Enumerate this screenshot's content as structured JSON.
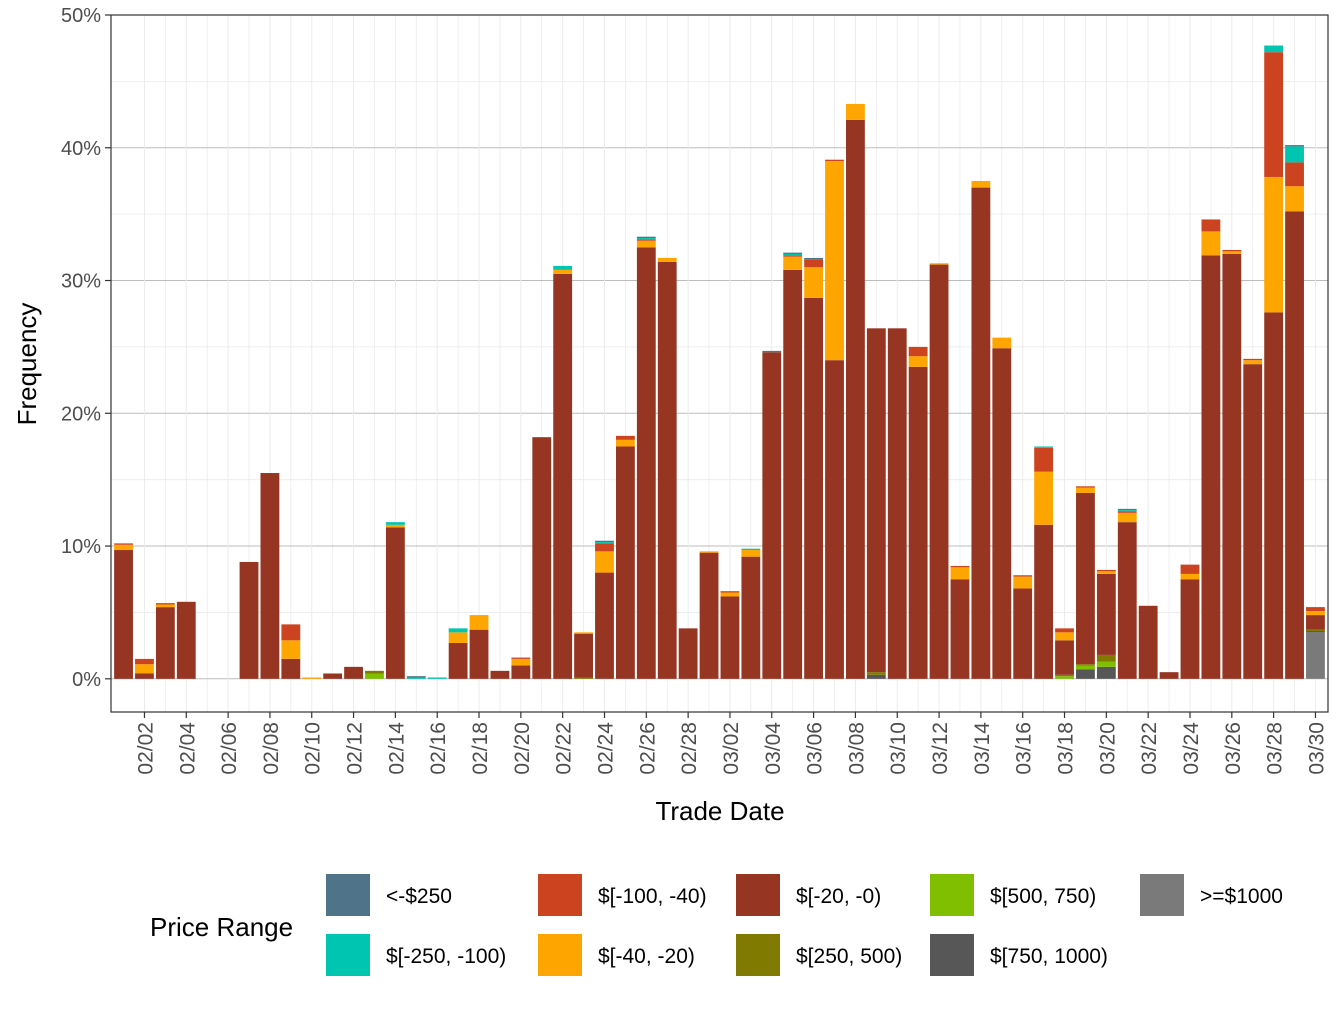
{
  "chart_data": {
    "type": "bar",
    "stacked": true,
    "title": "",
    "xlabel": "Trade Date",
    "ylabel": "Frequency",
    "ylim": [
      -0.025,
      0.5
    ],
    "y_ticks": [
      0,
      0.1,
      0.2,
      0.3,
      0.4,
      0.5
    ],
    "y_tick_labels": [
      "0%",
      "10%",
      "20%",
      "30%",
      "40%",
      "50%"
    ],
    "x_ticks": [
      "2026-02-02",
      "2026-02-04",
      "2026-02-06",
      "2026-02-08",
      "2026-02-10",
      "2026-02-12",
      "2026-02-14",
      "2026-02-16",
      "2026-02-18",
      "2026-02-20",
      "2026-02-22",
      "2026-02-24",
      "2026-02-26",
      "2026-02-28",
      "2026-03-02",
      "2026-03-04",
      "2026-03-06",
      "2026-03-08",
      "2026-03-10",
      "2026-03-12",
      "2026-03-14",
      "2026-03-16",
      "2026-03-18",
      "2026-03-20",
      "2026-03-22",
      "2026-03-24",
      "2026-03-26",
      "2026-03-28",
      "2026-03-30"
    ],
    "x_tick_labels": [
      "02/02",
      "02/04",
      "02/06",
      "02/08",
      "02/10",
      "02/12",
      "02/14",
      "02/16",
      "02/18",
      "02/20",
      "02/22",
      "02/24",
      "02/26",
      "02/28",
      "03/02",
      "03/04",
      "03/06",
      "03/08",
      "03/10",
      "03/12",
      "03/14",
      "03/16",
      "03/18",
      "03/20",
      "03/22",
      "03/24",
      "03/26",
      "03/28",
      "03/30"
    ],
    "grid": true,
    "legend": {
      "title": "Price Range",
      "position": "bottom",
      "entries": [
        "<-$250",
        "$[-250, -100)",
        "$[-100, -40)",
        "$[-40, -20)",
        "$[-20, -0)",
        "$[250, 500)",
        "$[500, 750)",
        "$[750, 1000)",
        ">=$1000"
      ]
    },
    "dates": [
      "2026-02-01",
      "2026-02-02",
      "2026-02-03",
      "2026-02-04",
      "2026-02-05",
      "2026-02-06",
      "2026-02-07",
      "2026-02-08",
      "2026-02-09",
      "2026-02-10",
      "2026-02-11",
      "2026-02-12",
      "2026-02-13",
      "2026-02-14",
      "2026-02-15",
      "2026-02-16",
      "2026-02-17",
      "2026-02-18",
      "2026-02-19",
      "2026-02-20",
      "2026-02-21",
      "2026-02-22",
      "2026-02-23",
      "2026-02-24",
      "2026-02-25",
      "2026-02-26",
      "2026-02-27",
      "2026-02-28",
      "2026-03-01",
      "2026-03-02",
      "2026-03-03",
      "2026-03-04",
      "2026-03-05",
      "2026-03-06",
      "2026-03-07",
      "2026-03-08",
      "2026-03-09",
      "2026-03-10",
      "2026-03-11",
      "2026-03-12",
      "2026-03-13",
      "2026-03-14",
      "2026-03-15",
      "2026-03-16",
      "2026-03-17",
      "2026-03-18",
      "2026-03-19",
      "2026-03-20",
      "2026-03-21",
      "2026-03-22",
      "2026-03-23",
      "2026-03-24",
      "2026-03-25",
      "2026-03-26",
      "2026-03-27",
      "2026-03-28",
      "2026-03-29",
      "2026-03-30"
    ],
    "series": [
      {
        "name": ">=$1000",
        "color": "#7a7a7a",
        "values": [
          0,
          0,
          0,
          0,
          0,
          0,
          0,
          0,
          0,
          0,
          0,
          0,
          0,
          0,
          0,
          0,
          0,
          0,
          0,
          0,
          0,
          0,
          0,
          0,
          0,
          0,
          0,
          0,
          0,
          0,
          0,
          0,
          0,
          0,
          0,
          0,
          0,
          0,
          0,
          0,
          0,
          0,
          0,
          0,
          0,
          0,
          0,
          0,
          0,
          0,
          0,
          0,
          0,
          0,
          0,
          0,
          0,
          0.035
        ]
      },
      {
        "name": "$[750, 1000)",
        "color": "#575757",
        "values": [
          0,
          0,
          0,
          0,
          0,
          0,
          0,
          0,
          0,
          0,
          0,
          0,
          0,
          0,
          0,
          0,
          0,
          0,
          0,
          0,
          0,
          0,
          0,
          0,
          0,
          0,
          0,
          0,
          0,
          0,
          0,
          0,
          0,
          0,
          0,
          0,
          0.003,
          0,
          0,
          0,
          0,
          0,
          0,
          0,
          0,
          0,
          0.007,
          0.009,
          0,
          0,
          0,
          0,
          0,
          0,
          0,
          0,
          0,
          0.001
        ]
      },
      {
        "name": "$[500, 750)",
        "color": "#7fbf00",
        "values": [
          0,
          0,
          0,
          0,
          0,
          0,
          0,
          0,
          0,
          0,
          0,
          0,
          0.004,
          0,
          0,
          0,
          0,
          0,
          0,
          0,
          0,
          0,
          0,
          0,
          0,
          0,
          0,
          0,
          0,
          0,
          0,
          0,
          0,
          0,
          0,
          0,
          0,
          0,
          0,
          0,
          0,
          0,
          0,
          0,
          0,
          0.002,
          0.003,
          0.004,
          0,
          0,
          0,
          0,
          0,
          0,
          0,
          0,
          0,
          0
        ]
      },
      {
        "name": "$[250, 500)",
        "color": "#807b00",
        "values": [
          0,
          0,
          0,
          0,
          0,
          0,
          0,
          0,
          0,
          0,
          0,
          0,
          0.002,
          0,
          0,
          0,
          0,
          0,
          0,
          0,
          0,
          0,
          0.001,
          0,
          0,
          0,
          0,
          0,
          0,
          0,
          0,
          0,
          0,
          0,
          0,
          0,
          0.002,
          0,
          0,
          0,
          0,
          0,
          0,
          0,
          0,
          0.001,
          0.001,
          0.005,
          0,
          0,
          0,
          0,
          0,
          0,
          0,
          0,
          0,
          0.001
        ]
      },
      {
        "name": "$[-20, -0)",
        "color": "#963522",
        "values": [
          0.097,
          0.004,
          0.054,
          0.058,
          0,
          0,
          0.088,
          0.155,
          0.015,
          0,
          0.004,
          0.009,
          0,
          0.114,
          0,
          0,
          0.027,
          0.037,
          0.006,
          0.01,
          0.182,
          0.305,
          0.033,
          0.08,
          0.175,
          0.325,
          0.314,
          0.038,
          0.095,
          0.062,
          0.092,
          0.246,
          0.308,
          0.287,
          0.24,
          0.421,
          0.259,
          0.264,
          0.235,
          0.312,
          0.075,
          0.37,
          0.249,
          0.068,
          0.116,
          0.026,
          0.129,
          0.061,
          0.118,
          0.055,
          0.005,
          0.075,
          0.319,
          0.32,
          0.237,
          0.276,
          0.352,
          0.011
        ]
      },
      {
        "name": "$[-40, -20)",
        "color": "#ffa500",
        "values": [
          0.004,
          0.007,
          0.002,
          0,
          0,
          0,
          0,
          0,
          0.014,
          0.001,
          0,
          0,
          0,
          0.002,
          0,
          0,
          0.008,
          0.011,
          0,
          0.005,
          0,
          0.003,
          0.001,
          0.016,
          0.005,
          0.005,
          0.003,
          0,
          0.001,
          0.003,
          0.005,
          0,
          0.01,
          0.023,
          0.15,
          0.012,
          0,
          0,
          0.008,
          0.001,
          0.009,
          0.005,
          0.008,
          0.009,
          0.04,
          0.006,
          0.004,
          0.002,
          0.007,
          0,
          0,
          0.004,
          0.018,
          0.002,
          0.003,
          0.102,
          0.019,
          0.003
        ]
      },
      {
        "name": "$[-100, -40)",
        "color": "#cc4320",
        "values": [
          0.001,
          0.004,
          0.001,
          0,
          0,
          0,
          0,
          0,
          0.012,
          0,
          0,
          0,
          0,
          0,
          0,
          0,
          0,
          0,
          0,
          0.001,
          0,
          0,
          0,
          0.006,
          0.003,
          0.001,
          0,
          0,
          0,
          0.001,
          0,
          0,
          0.001,
          0.006,
          0.001,
          0,
          0,
          0,
          0.007,
          0,
          0.001,
          0,
          0,
          0.001,
          0.018,
          0.003,
          0.001,
          0.001,
          0.001,
          0,
          0,
          0.007,
          0.009,
          0.001,
          0.001,
          0.094,
          0.018,
          0.003
        ]
      },
      {
        "name": "$[-250, -100)",
        "color": "#00c5b0",
        "values": [
          0,
          0,
          0,
          0,
          0,
          0,
          0,
          0,
          0,
          0,
          0,
          0,
          0,
          0.002,
          0.001,
          0.001,
          0.003,
          0,
          0,
          0,
          0,
          0.003,
          0,
          0.001,
          0,
          0.001,
          0,
          0,
          0,
          0,
          0.001,
          0,
          0.001,
          0,
          0,
          0,
          0,
          0,
          0,
          0,
          0,
          0,
          0,
          0,
          0.001,
          0,
          0,
          0,
          0.001,
          0,
          0,
          0,
          0,
          0,
          0,
          0.005,
          0.012,
          0
        ]
      },
      {
        "name": "<-$250",
        "color": "#4f7489",
        "values": [
          0,
          0,
          0,
          0,
          0,
          0,
          0,
          0,
          0,
          0,
          0,
          0,
          0,
          0,
          0.001,
          0,
          0,
          0,
          0,
          0,
          0,
          0,
          0,
          0.001,
          0,
          0.001,
          0,
          0,
          0,
          0,
          0,
          0.001,
          0.001,
          0.001,
          0,
          0,
          0,
          0,
          0,
          0,
          0,
          0,
          0,
          0,
          0,
          0,
          0,
          0,
          0.001,
          0,
          0,
          0,
          0,
          0,
          0,
          0,
          0.001,
          0
        ]
      }
    ]
  }
}
